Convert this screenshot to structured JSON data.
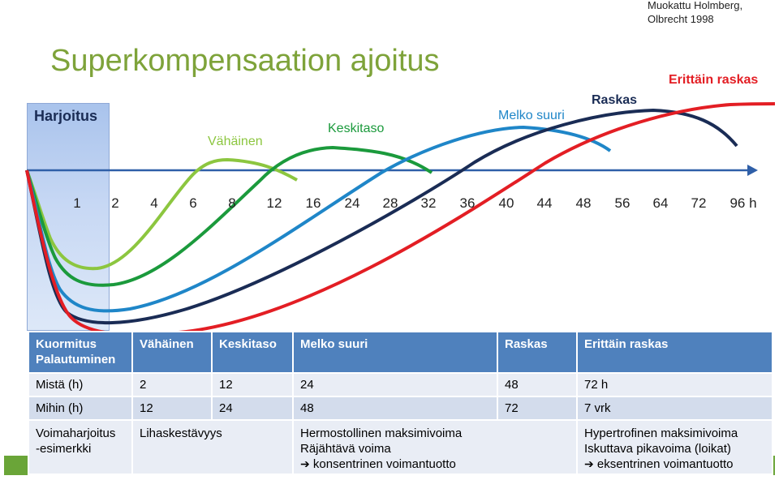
{
  "credit": {
    "line1": "Muokattu Holmberg,",
    "line2": "Olbrecht 1998"
  },
  "title": "Superkompensaation ajoitus",
  "training_label": "Harjoitus",
  "load_levels": [
    "Vähäinen",
    "Keskitaso",
    "Melko suuri",
    "Raskas",
    "Erittäin raskas"
  ],
  "time_axis": {
    "ticks": [
      "1",
      "2",
      "4",
      "6",
      "8",
      "12",
      "16",
      "24",
      "28",
      "32",
      "36",
      "40",
      "44",
      "48",
      "56",
      "64",
      "72",
      "96 h"
    ]
  },
  "colors": {
    "vahainen": "#8cc63f",
    "keskitaso": "#1b9a3c",
    "melko_suuri": "#1f86c8",
    "raskas": "#1a2c55",
    "erittain_raskas": "#e31e24",
    "title": "#7ea33a",
    "table_header": "#4f81bd",
    "bottom_bar": "#6aa538"
  },
  "table": {
    "header": {
      "col0_line1": "Kuormitus",
      "col0_line2": "Palautuminen",
      "col1": "Vähäinen",
      "col2": "Keskitaso",
      "col3": "Melko suuri",
      "col4": "Raskas",
      "col5": "Erittäin raskas"
    },
    "row_from": {
      "label": "Mistä (h)",
      "v1": "2",
      "v2": "12",
      "v3": "24",
      "v4": "48",
      "v5": "72 h"
    },
    "row_to": {
      "label": "Mihin (h)",
      "v1": "12",
      "v2": "24",
      "v3": "48",
      "v4": "72",
      "v5": "7 vrk"
    },
    "row_examples": {
      "label_line1": "Voimaharjoitus",
      "label_line2": "-esimerkki",
      "c1": "Lihaskestävyys",
      "c3_line1": "Hermostollinen maksimivoima",
      "c3_line2": "Räjähtävä voima",
      "c3_line3": "konsentrinen voimantuotto",
      "c5_line1": "Hypertrofinen maksimivoima",
      "c5_line2": "Iskuttava pikavoima (loikat)",
      "c5_line3": "eksentrinen voimantuotto"
    }
  }
}
